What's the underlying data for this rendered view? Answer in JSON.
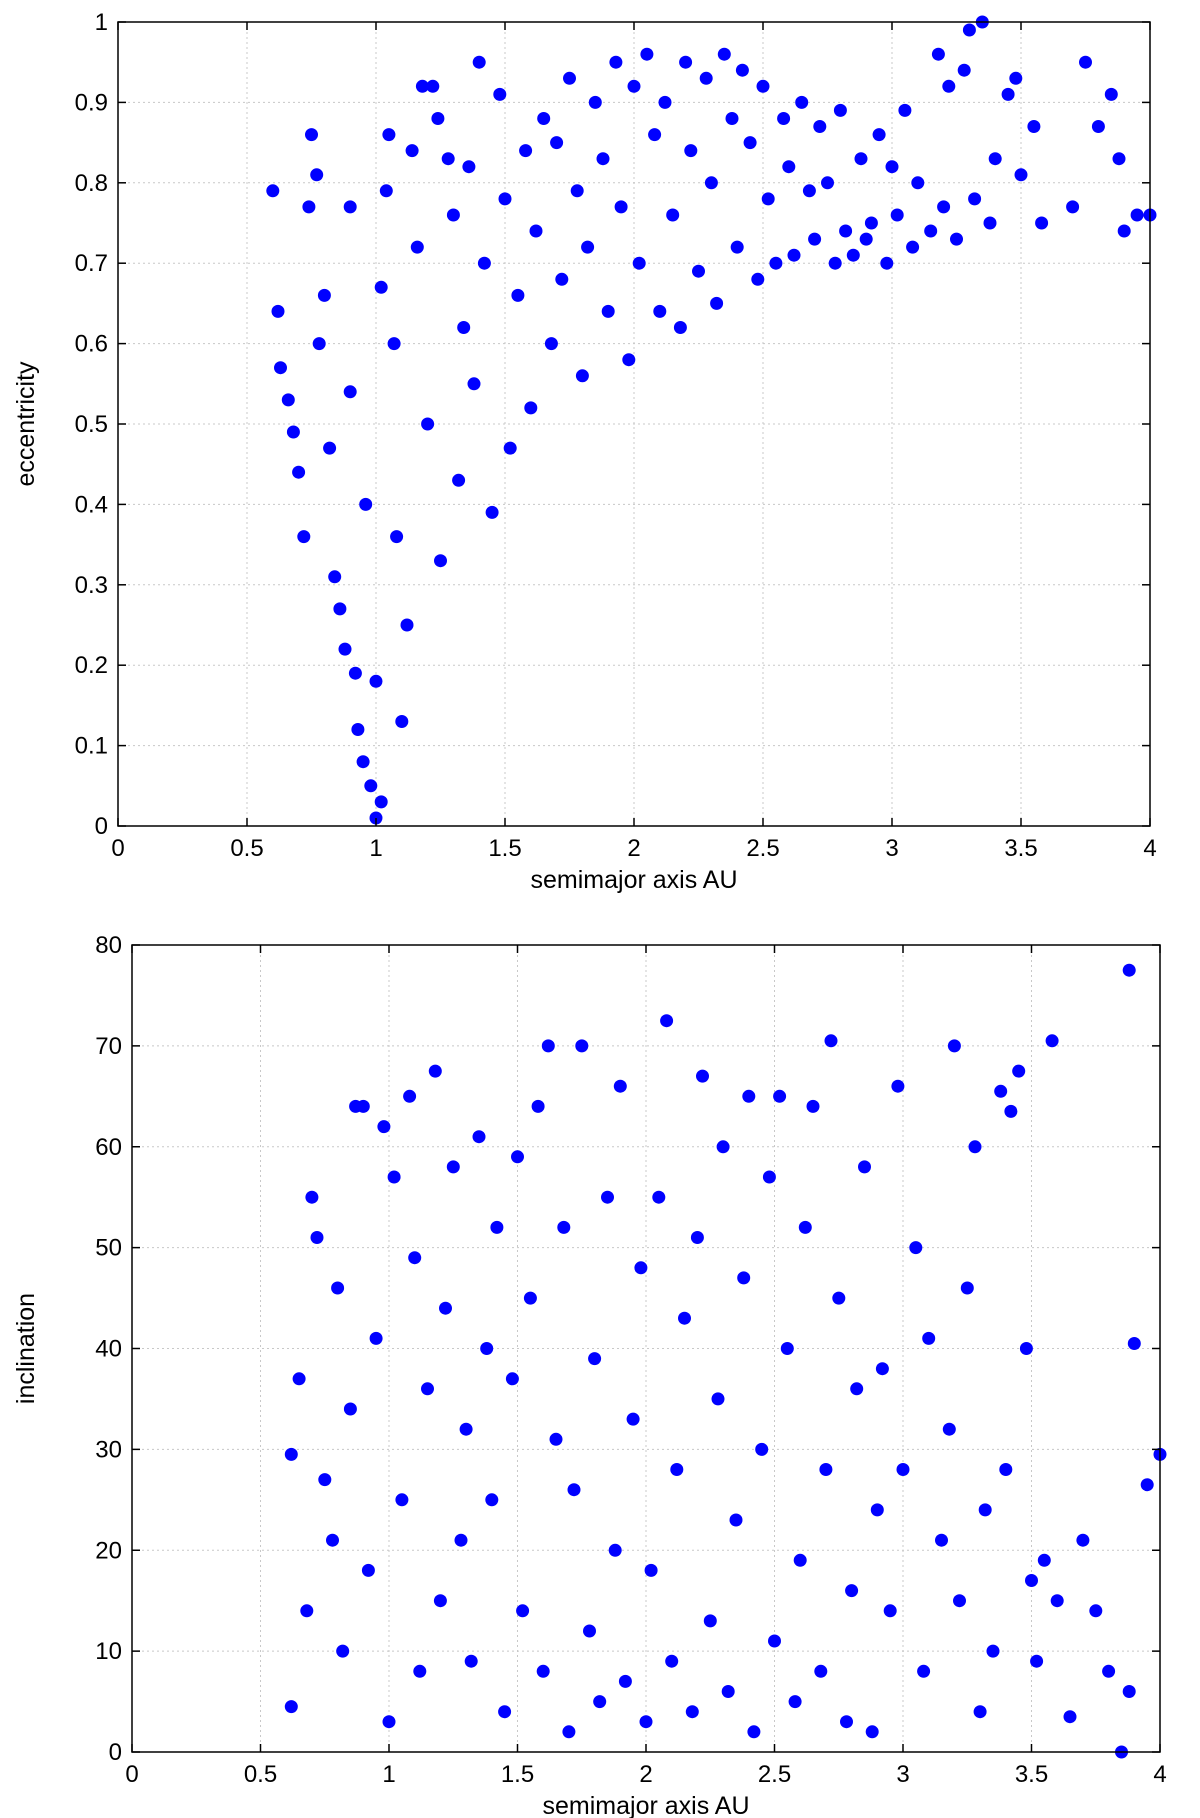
{
  "chart_data": [
    {
      "type": "scatter",
      "title": "",
      "xlabel": "semimajor axis AU",
      "ylabel": "eccentricity",
      "xlim": [
        0,
        4
      ],
      "ylim": [
        0,
        1
      ],
      "xticks": [
        "0",
        "0.5",
        "1",
        "1.5",
        "2",
        "2.5",
        "3",
        "3.5",
        "4"
      ],
      "yticks": [
        "0",
        "0.1",
        "0.2",
        "0.3",
        "0.4",
        "0.5",
        "0.6",
        "0.7",
        "0.8",
        "0.9",
        "1"
      ],
      "grid": true,
      "legend": "none",
      "marker_color": "#0000ff",
      "series": [
        {
          "points": [
            [
              0.6,
              0.79
            ],
            [
              0.62,
              0.64
            ],
            [
              0.63,
              0.57
            ],
            [
              0.66,
              0.53
            ],
            [
              0.68,
              0.49
            ],
            [
              0.7,
              0.44
            ],
            [
              0.72,
              0.36
            ],
            [
              0.74,
              0.77
            ],
            [
              0.75,
              0.86
            ],
            [
              0.77,
              0.81
            ],
            [
              0.78,
              0.6
            ],
            [
              0.8,
              0.66
            ],
            [
              0.82,
              0.47
            ],
            [
              0.84,
              0.31
            ],
            [
              0.86,
              0.27
            ],
            [
              0.88,
              0.22
            ],
            [
              0.9,
              0.77
            ],
            [
              0.9,
              0.54
            ],
            [
              0.92,
              0.19
            ],
            [
              0.93,
              0.12
            ],
            [
              0.95,
              0.08
            ],
            [
              0.96,
              0.4
            ],
            [
              0.98,
              0.05
            ],
            [
              1.0,
              0.01
            ],
            [
              1.0,
              0.18
            ],
            [
              1.02,
              0.03
            ],
            [
              1.02,
              0.67
            ],
            [
              1.04,
              0.79
            ],
            [
              1.05,
              0.86
            ],
            [
              1.07,
              0.6
            ],
            [
              1.08,
              0.36
            ],
            [
              1.1,
              0.13
            ],
            [
              1.12,
              0.25
            ],
            [
              1.14,
              0.84
            ],
            [
              1.16,
              0.72
            ],
            [
              1.18,
              0.92
            ],
            [
              1.2,
              0.5
            ],
            [
              1.22,
              0.92
            ],
            [
              1.24,
              0.88
            ],
            [
              1.25,
              0.33
            ],
            [
              1.28,
              0.83
            ],
            [
              1.3,
              0.76
            ],
            [
              1.32,
              0.43
            ],
            [
              1.34,
              0.62
            ],
            [
              1.36,
              0.82
            ],
            [
              1.38,
              0.55
            ],
            [
              1.4,
              0.95
            ],
            [
              1.42,
              0.7
            ],
            [
              1.45,
              0.39
            ],
            [
              1.48,
              0.91
            ],
            [
              1.5,
              0.78
            ],
            [
              1.52,
              0.47
            ],
            [
              1.55,
              0.66
            ],
            [
              1.58,
              0.84
            ],
            [
              1.6,
              0.52
            ],
            [
              1.62,
              0.74
            ],
            [
              1.65,
              0.88
            ],
            [
              1.68,
              0.6
            ],
            [
              1.7,
              0.85
            ],
            [
              1.72,
              0.68
            ],
            [
              1.75,
              0.93
            ],
            [
              1.78,
              0.79
            ],
            [
              1.8,
              0.56
            ],
            [
              1.82,
              0.72
            ],
            [
              1.85,
              0.9
            ],
            [
              1.88,
              0.83
            ],
            [
              1.9,
              0.64
            ],
            [
              1.93,
              0.95
            ],
            [
              1.95,
              0.77
            ],
            [
              1.98,
              0.58
            ],
            [
              2.0,
              0.92
            ],
            [
              2.02,
              0.7
            ],
            [
              2.05,
              0.96
            ],
            [
              2.08,
              0.86
            ],
            [
              2.1,
              0.64
            ],
            [
              2.12,
              0.9
            ],
            [
              2.15,
              0.76
            ],
            [
              2.18,
              0.62
            ],
            [
              2.2,
              0.95
            ],
            [
              2.22,
              0.84
            ],
            [
              2.25,
              0.69
            ],
            [
              2.28,
              0.93
            ],
            [
              2.3,
              0.8
            ],
            [
              2.32,
              0.65
            ],
            [
              2.35,
              0.96
            ],
            [
              2.38,
              0.88
            ],
            [
              2.4,
              0.72
            ],
            [
              2.42,
              0.94
            ],
            [
              2.45,
              0.85
            ],
            [
              2.48,
              0.68
            ],
            [
              2.5,
              0.92
            ],
            [
              2.52,
              0.78
            ],
            [
              2.55,
              0.7
            ],
            [
              2.58,
              0.88
            ],
            [
              2.6,
              0.82
            ],
            [
              2.62,
              0.71
            ],
            [
              2.65,
              0.9
            ],
            [
              2.68,
              0.79
            ],
            [
              2.7,
              0.73
            ],
            [
              2.72,
              0.87
            ],
            [
              2.75,
              0.8
            ],
            [
              2.78,
              0.7
            ],
            [
              2.8,
              0.89
            ],
            [
              2.82,
              0.74
            ],
            [
              2.85,
              0.71
            ],
            [
              2.88,
              0.83
            ],
            [
              2.9,
              0.73
            ],
            [
              2.92,
              0.75
            ],
            [
              2.95,
              0.86
            ],
            [
              2.98,
              0.7
            ],
            [
              3.0,
              0.82
            ],
            [
              3.02,
              0.76
            ],
            [
              3.05,
              0.89
            ],
            [
              3.08,
              0.72
            ],
            [
              3.1,
              0.8
            ],
            [
              3.15,
              0.74
            ],
            [
              3.18,
              0.96
            ],
            [
              3.2,
              0.77
            ],
            [
              3.22,
              0.92
            ],
            [
              3.25,
              0.73
            ],
            [
              3.28,
              0.94
            ],
            [
              3.3,
              0.99
            ],
            [
              3.32,
              0.78
            ],
            [
              3.35,
              1.0
            ],
            [
              3.38,
              0.75
            ],
            [
              3.4,
              0.83
            ],
            [
              3.45,
              0.91
            ],
            [
              3.48,
              0.93
            ],
            [
              3.5,
              0.81
            ],
            [
              3.55,
              0.87
            ],
            [
              3.58,
              0.75
            ],
            [
              3.7,
              0.77
            ],
            [
              3.75,
              0.95
            ],
            [
              3.8,
              0.87
            ],
            [
              3.85,
              0.91
            ],
            [
              3.88,
              0.83
            ],
            [
              3.9,
              0.74
            ],
            [
              3.95,
              0.76
            ],
            [
              4.0,
              0.76
            ]
          ]
        }
      ]
    },
    {
      "type": "scatter",
      "title": "",
      "xlabel": "semimajor axis AU",
      "ylabel": "inclination",
      "xlim": [
        0,
        4
      ],
      "ylim": [
        0,
        80
      ],
      "xticks": [
        "0",
        "0.5",
        "1",
        "1.5",
        "2",
        "2.5",
        "3",
        "3.5",
        "4"
      ],
      "yticks": [
        "0",
        "10",
        "20",
        "30",
        "40",
        "50",
        "60",
        "70",
        "80"
      ],
      "grid": true,
      "legend": "none",
      "marker_color": "#0000ff",
      "series": [
        {
          "points": [
            [
              0.62,
              4.5
            ],
            [
              0.62,
              29.5
            ],
            [
              0.65,
              37
            ],
            [
              0.68,
              14
            ],
            [
              0.7,
              55
            ],
            [
              0.72,
              51
            ],
            [
              0.75,
              27
            ],
            [
              0.78,
              21
            ],
            [
              0.8,
              46
            ],
            [
              0.82,
              10
            ],
            [
              0.85,
              34
            ],
            [
              0.87,
              64
            ],
            [
              0.9,
              64
            ],
            [
              0.92,
              18
            ],
            [
              0.95,
              41
            ],
            [
              0.98,
              62
            ],
            [
              1.0,
              3
            ],
            [
              1.02,
              57
            ],
            [
              1.05,
              25
            ],
            [
              1.08,
              65
            ],
            [
              1.1,
              49
            ],
            [
              1.12,
              8
            ],
            [
              1.15,
              36
            ],
            [
              1.18,
              67.5
            ],
            [
              1.2,
              15
            ],
            [
              1.22,
              44
            ],
            [
              1.25,
              58
            ],
            [
              1.28,
              21
            ],
            [
              1.3,
              32
            ],
            [
              1.32,
              9
            ],
            [
              1.35,
              61
            ],
            [
              1.38,
              40
            ],
            [
              1.4,
              25
            ],
            [
              1.42,
              52
            ],
            [
              1.45,
              4
            ],
            [
              1.48,
              37
            ],
            [
              1.5,
              59
            ],
            [
              1.52,
              14
            ],
            [
              1.55,
              45
            ],
            [
              1.58,
              64
            ],
            [
              1.6,
              8
            ],
            [
              1.62,
              70
            ],
            [
              1.65,
              31
            ],
            [
              1.68,
              52
            ],
            [
              1.7,
              2
            ],
            [
              1.72,
              26
            ],
            [
              1.75,
              70
            ],
            [
              1.78,
              12
            ],
            [
              1.8,
              39
            ],
            [
              1.82,
              5
            ],
            [
              1.85,
              55
            ],
            [
              1.88,
              20
            ],
            [
              1.9,
              66
            ],
            [
              1.92,
              7
            ],
            [
              1.95,
              33
            ],
            [
              1.98,
              48
            ],
            [
              2.0,
              3
            ],
            [
              2.02,
              18
            ],
            [
              2.05,
              55
            ],
            [
              2.08,
              72.5
            ],
            [
              2.1,
              9
            ],
            [
              2.12,
              28
            ],
            [
              2.15,
              43
            ],
            [
              2.18,
              4
            ],
            [
              2.2,
              51
            ],
            [
              2.22,
              67
            ],
            [
              2.25,
              13
            ],
            [
              2.28,
              35
            ],
            [
              2.3,
              60
            ],
            [
              2.32,
              6
            ],
            [
              2.35,
              23
            ],
            [
              2.38,
              47
            ],
            [
              2.4,
              65
            ],
            [
              2.42,
              2
            ],
            [
              2.45,
              30
            ],
            [
              2.48,
              57
            ],
            [
              2.5,
              11
            ],
            [
              2.52,
              65
            ],
            [
              2.55,
              40
            ],
            [
              2.58,
              5
            ],
            [
              2.6,
              19
            ],
            [
              2.62,
              52
            ],
            [
              2.65,
              64
            ],
            [
              2.68,
              8
            ],
            [
              2.7,
              28
            ],
            [
              2.72,
              70.5
            ],
            [
              2.75,
              45
            ],
            [
              2.78,
              3
            ],
            [
              2.8,
              16
            ],
            [
              2.82,
              36
            ],
            [
              2.85,
              58
            ],
            [
              2.88,
              2
            ],
            [
              2.9,
              24
            ],
            [
              2.92,
              38
            ],
            [
              2.95,
              14
            ],
            [
              2.98,
              66
            ],
            [
              3.0,
              28
            ],
            [
              3.05,
              50
            ],
            [
              3.08,
              8
            ],
            [
              3.1,
              41
            ],
            [
              3.15,
              21
            ],
            [
              3.18,
              32
            ],
            [
              3.2,
              70
            ],
            [
              3.22,
              15
            ],
            [
              3.25,
              46
            ],
            [
              3.28,
              60
            ],
            [
              3.3,
              4
            ],
            [
              3.32,
              24
            ],
            [
              3.35,
              10
            ],
            [
              3.38,
              65.5
            ],
            [
              3.4,
              28
            ],
            [
              3.42,
              63.5
            ],
            [
              3.45,
              67.5
            ],
            [
              3.48,
              40
            ],
            [
              3.5,
              17
            ],
            [
              3.52,
              9
            ],
            [
              3.55,
              19
            ],
            [
              3.58,
              70.5
            ],
            [
              3.6,
              15
            ],
            [
              3.65,
              3.5
            ],
            [
              3.7,
              21
            ],
            [
              3.75,
              14
            ],
            [
              3.8,
              8
            ],
            [
              3.85,
              0
            ],
            [
              3.88,
              6
            ],
            [
              3.88,
              77.5
            ],
            [
              3.9,
              40.5
            ],
            [
              3.95,
              26.5
            ],
            [
              4.0,
              29.5
            ]
          ]
        }
      ]
    }
  ]
}
